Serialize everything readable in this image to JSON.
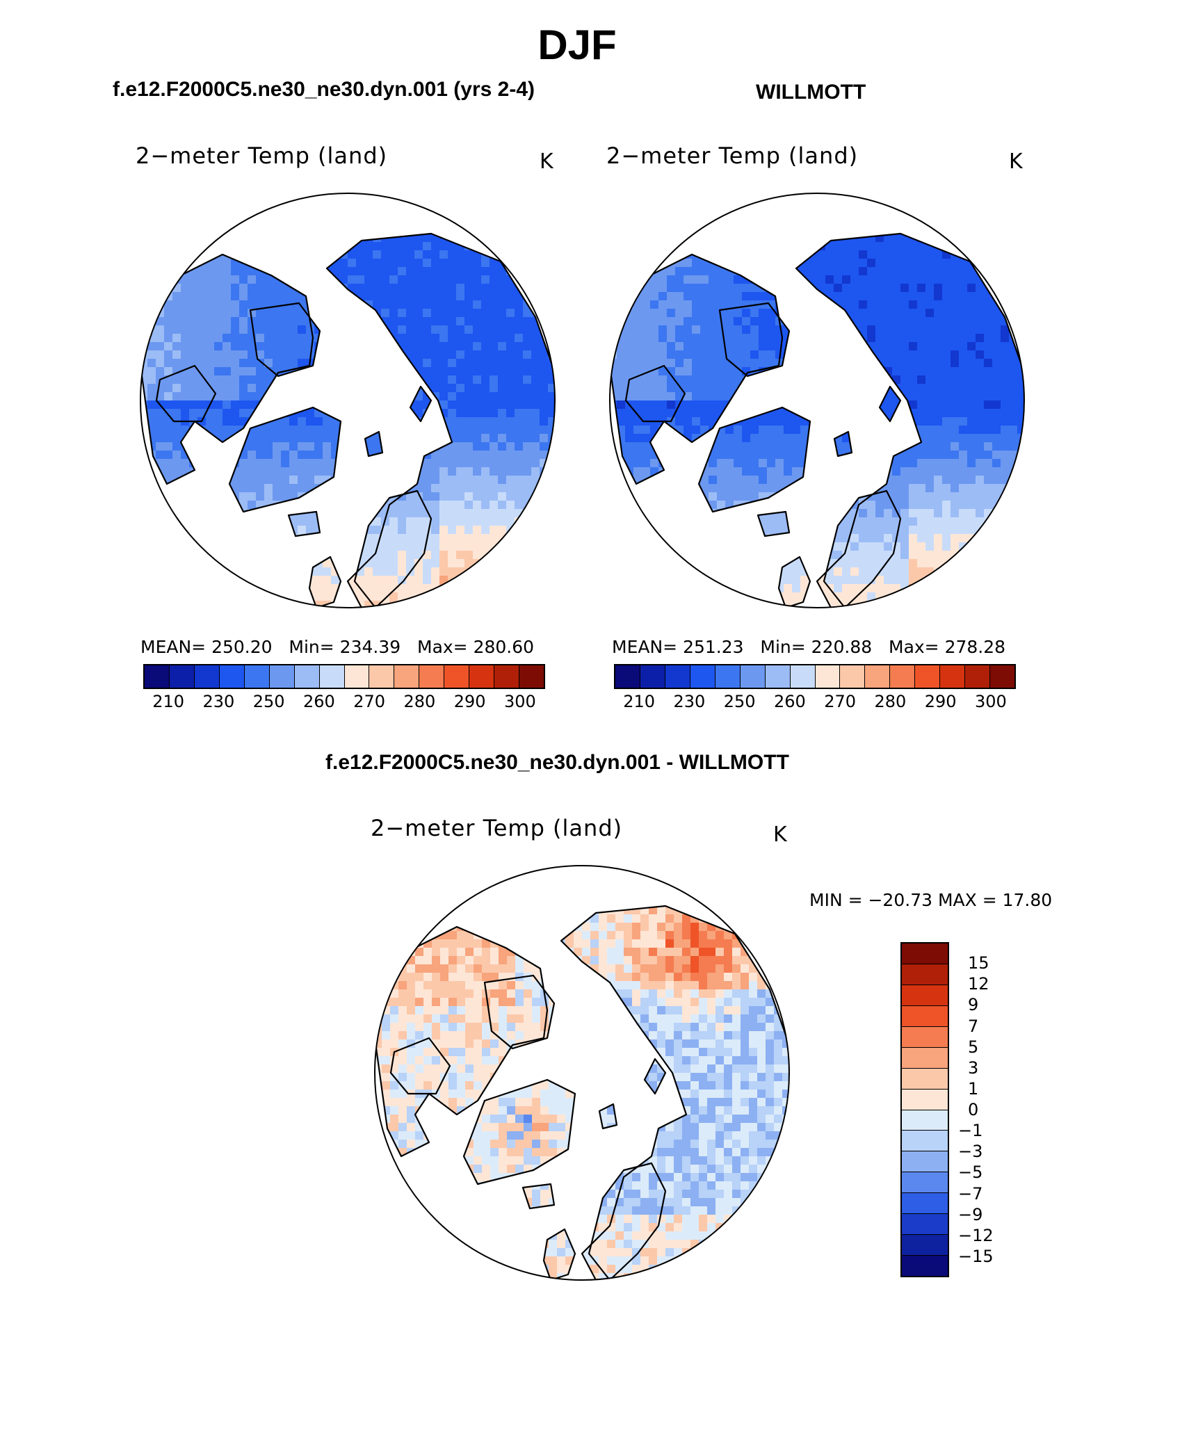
{
  "title": "DJF",
  "panels": [
    {
      "case_title": "f.e12.F2000C5.ne30_ne30.dyn.001 (yrs 2-4)",
      "var_title": "2−meter Temp (land)",
      "units": "K",
      "stats": {
        "mean_label": "MEAN=",
        "mean": "250.20",
        "min_label": "Min=",
        "min": "234.39",
        "max_label": "Max=",
        "max": "280.60"
      }
    },
    {
      "case_title": "WILLMOTT",
      "var_title": "2−meter Temp (land)",
      "units": "K",
      "stats": {
        "mean_label": "MEAN=",
        "mean": "251.23",
        "min_label": "Min=",
        "min": "220.88",
        "max_label": "Max=",
        "max": "278.28"
      }
    },
    {
      "case_title": "f.e12.F2000C5.ne30_ne30.dyn.001 - WILLMOTT",
      "var_title": "2−meter Temp (land)",
      "units": "K",
      "stats_text": "MIN = −20.73 MAX =   17.80"
    }
  ],
  "chart_data": [
    {
      "type": "heatmap",
      "projection": "north polar stereographic",
      "title": "2−meter Temp (land)",
      "case": "f.e12.F2000C5.ne30_ne30.dyn.001 (yrs 2-4)",
      "units": "K",
      "mean": 250.2,
      "min": 234.39,
      "max": 280.6,
      "colorbar_ticks": [
        "210",
        "230",
        "250",
        "260",
        "270",
        "280",
        "290",
        "300"
      ],
      "colorbar_colors": [
        "#0a0a78",
        "#0c1fa8",
        "#1238d0",
        "#1e56f0",
        "#3c76f0",
        "#6c98f0",
        "#9cbcf6",
        "#c8dcfa",
        "#fde6d6",
        "#fcc8aa",
        "#f8a47c",
        "#f47c50",
        "#ee5428",
        "#d63410",
        "#b02008",
        "#7c0c04"
      ]
    },
    {
      "type": "heatmap",
      "projection": "north polar stereographic",
      "title": "2−meter Temp (land)",
      "case": "WILLMOTT",
      "units": "K",
      "mean": 251.23,
      "min": 220.88,
      "max": 278.28,
      "colorbar_ticks": [
        "210",
        "230",
        "250",
        "260",
        "270",
        "280",
        "290",
        "300"
      ],
      "colorbar_colors": [
        "#0a0a78",
        "#0c1fa8",
        "#1238d0",
        "#1e56f0",
        "#3c76f0",
        "#6c98f0",
        "#9cbcf6",
        "#c8dcfa",
        "#fde6d6",
        "#fcc8aa",
        "#f8a47c",
        "#f47c50",
        "#ee5428",
        "#d63410",
        "#b02008",
        "#7c0c04"
      ]
    },
    {
      "type": "heatmap",
      "projection": "north polar stereographic",
      "title": "2−meter Temp (land)",
      "case": "f.e12.F2000C5.ne30_ne30.dyn.001 - WILLMOTT",
      "units": "K",
      "min": -20.73,
      "max": 17.8,
      "colorbar_ticks": [
        "15",
        "12",
        "9",
        "7",
        "5",
        "3",
        "1",
        "0",
        "−1",
        "−3",
        "−5",
        "−7",
        "−9",
        "−12",
        "−15"
      ],
      "colorbar_colors": [
        "#7c0c04",
        "#b02008",
        "#d63410",
        "#ee5428",
        "#f47c50",
        "#f8a47c",
        "#fcc8aa",
        "#fde6d6",
        "#dcebfa",
        "#b8d2f8",
        "#8cb0f2",
        "#5a88ee",
        "#2e5ee6",
        "#1a3cc8",
        "#0e22a0",
        "#0a0a78"
      ]
    }
  ]
}
